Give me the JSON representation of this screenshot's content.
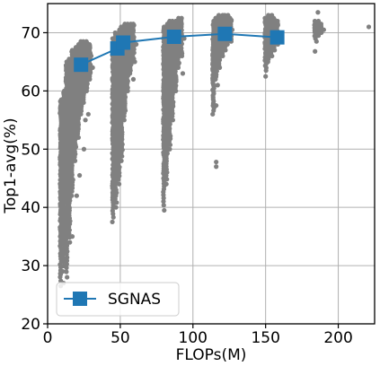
{
  "chart_data": {
    "type": "scatter",
    "xlabel": "FLOPs(M)",
    "ylabel": "Top1-avg(%)",
    "xlim": [
      0,
      225
    ],
    "ylim": [
      20,
      75
    ],
    "x_ticks": [
      0,
      50,
      100,
      150,
      200
    ],
    "y_ticks": [
      20,
      30,
      40,
      50,
      60,
      70
    ],
    "grid": true,
    "legend_position": "lower-left",
    "colors": {
      "scatter": "#808080",
      "line": "#1f77b4",
      "grid": "#b0b0b0"
    },
    "scatter_columns": [
      {
        "x": 9,
        "ymin": 26.5,
        "ymax": 58.5,
        "n": 90
      },
      {
        "x": 11,
        "ymin": 29.0,
        "ymax": 60.0,
        "n": 80
      },
      {
        "x": 13,
        "ymin": 28.0,
        "ymax": 65.0,
        "n": 100
      },
      {
        "x": 15,
        "ymin": 34.0,
        "ymax": 65.5,
        "n": 90
      },
      {
        "x": 17,
        "ymin": 42.0,
        "ymax": 67.0,
        "n": 80
      },
      {
        "x": 19,
        "ymin": 48.0,
        "ymax": 67.5,
        "n": 70
      },
      {
        "x": 21,
        "ymin": 52.0,
        "ymax": 68.0,
        "n": 60
      },
      {
        "x": 23,
        "ymin": 56.0,
        "ymax": 68.5,
        "n": 50
      },
      {
        "x": 25,
        "ymin": 58.0,
        "ymax": 68.5,
        "n": 45
      },
      {
        "x": 27,
        "ymin": 60.0,
        "ymax": 68.5,
        "n": 35
      },
      {
        "x": 29,
        "ymin": 62.0,
        "ymax": 68.0,
        "n": 25
      },
      {
        "x": 45,
        "ymin": 37.5,
        "ymax": 69.0,
        "n": 100
      },
      {
        "x": 47,
        "ymin": 40.0,
        "ymax": 70.0,
        "n": 90
      },
      {
        "x": 49,
        "ymin": 44.0,
        "ymax": 70.5,
        "n": 80
      },
      {
        "x": 51,
        "ymin": 48.0,
        "ymax": 71.0,
        "n": 70
      },
      {
        "x": 53,
        "ymin": 55.0,
        "ymax": 71.5,
        "n": 55
      },
      {
        "x": 55,
        "ymin": 60.0,
        "ymax": 71.5,
        "n": 45
      },
      {
        "x": 57,
        "ymin": 63.0,
        "ymax": 71.5,
        "n": 35
      },
      {
        "x": 59,
        "ymin": 65.0,
        "ymax": 71.5,
        "n": 25
      },
      {
        "x": 80,
        "ymin": 39.5,
        "ymax": 71.0,
        "n": 90
      },
      {
        "x": 82,
        "ymin": 44.0,
        "ymax": 71.5,
        "n": 80
      },
      {
        "x": 84,
        "ymin": 50.0,
        "ymax": 72.0,
        "n": 70
      },
      {
        "x": 86,
        "ymin": 55.0,
        "ymax": 72.0,
        "n": 60
      },
      {
        "x": 88,
        "ymin": 60.0,
        "ymax": 72.0,
        "n": 50
      },
      {
        "x": 90,
        "ymin": 64.0,
        "ymax": 72.5,
        "n": 40
      },
      {
        "x": 92,
        "ymin": 66.0,
        "ymax": 72.5,
        "n": 30
      },
      {
        "x": 114,
        "ymin": 56.0,
        "ymax": 72.0,
        "n": 60
      },
      {
        "x": 116,
        "ymin": 62.0,
        "ymax": 72.5,
        "n": 50
      },
      {
        "x": 118,
        "ymin": 64.0,
        "ymax": 73.0,
        "n": 45
      },
      {
        "x": 120,
        "ymin": 66.0,
        "ymax": 73.0,
        "n": 35
      },
      {
        "x": 122,
        "ymin": 67.0,
        "ymax": 73.0,
        "n": 30
      },
      {
        "x": 124,
        "ymin": 68.0,
        "ymax": 73.0,
        "n": 25
      },
      {
        "x": 126,
        "ymin": 68.5,
        "ymax": 72.5,
        "n": 20
      },
      {
        "x": 150,
        "ymin": 63.5,
        "ymax": 72.5,
        "n": 40
      },
      {
        "x": 152,
        "ymin": 65.0,
        "ymax": 73.0,
        "n": 35
      },
      {
        "x": 154,
        "ymin": 66.0,
        "ymax": 73.0,
        "n": 30
      },
      {
        "x": 156,
        "ymin": 67.0,
        "ymax": 72.5,
        "n": 20
      },
      {
        "x": 158,
        "ymin": 68.0,
        "ymax": 72.0,
        "n": 15
      },
      {
        "x": 184,
        "ymin": 69.0,
        "ymax": 72.0,
        "n": 12
      },
      {
        "x": 186,
        "ymin": 69.5,
        "ymax": 72.0,
        "n": 10
      },
      {
        "x": 188,
        "ymin": 70.0,
        "ymax": 71.5,
        "n": 8
      }
    ],
    "scatter_points": [
      {
        "x": 11,
        "y": 27.0
      },
      {
        "x": 9,
        "y": 28.5
      },
      {
        "x": 17,
        "y": 35.0
      },
      {
        "x": 20,
        "y": 42.0
      },
      {
        "x": 22,
        "y": 45.5
      },
      {
        "x": 25,
        "y": 50.0
      },
      {
        "x": 26,
        "y": 55.0
      },
      {
        "x": 28,
        "y": 56.0
      },
      {
        "x": 30,
        "y": 66.0
      },
      {
        "x": 31,
        "y": 64.0
      },
      {
        "x": 59,
        "y": 62.0
      },
      {
        "x": 60,
        "y": 65.0
      },
      {
        "x": 61,
        "y": 68.0
      },
      {
        "x": 93,
        "y": 63.0
      },
      {
        "x": 94,
        "y": 69.0
      },
      {
        "x": 116,
        "y": 47.0
      },
      {
        "x": 116,
        "y": 47.8
      },
      {
        "x": 116,
        "y": 57.5
      },
      {
        "x": 117,
        "y": 61.0
      },
      {
        "x": 127,
        "y": 70.5
      },
      {
        "x": 150,
        "y": 62.5
      },
      {
        "x": 160,
        "y": 70.0
      },
      {
        "x": 184,
        "y": 66.8
      },
      {
        "x": 185,
        "y": 68.5
      },
      {
        "x": 186,
        "y": 73.5
      },
      {
        "x": 190,
        "y": 70.5
      },
      {
        "x": 221,
        "y": 71.0
      }
    ],
    "series": [
      {
        "name": "SGNAS",
        "x": [
          23,
          48,
          52,
          87,
          122,
          158
        ],
        "y": [
          64.5,
          67.3,
          68.3,
          69.3,
          69.8,
          69.2
        ]
      }
    ]
  }
}
